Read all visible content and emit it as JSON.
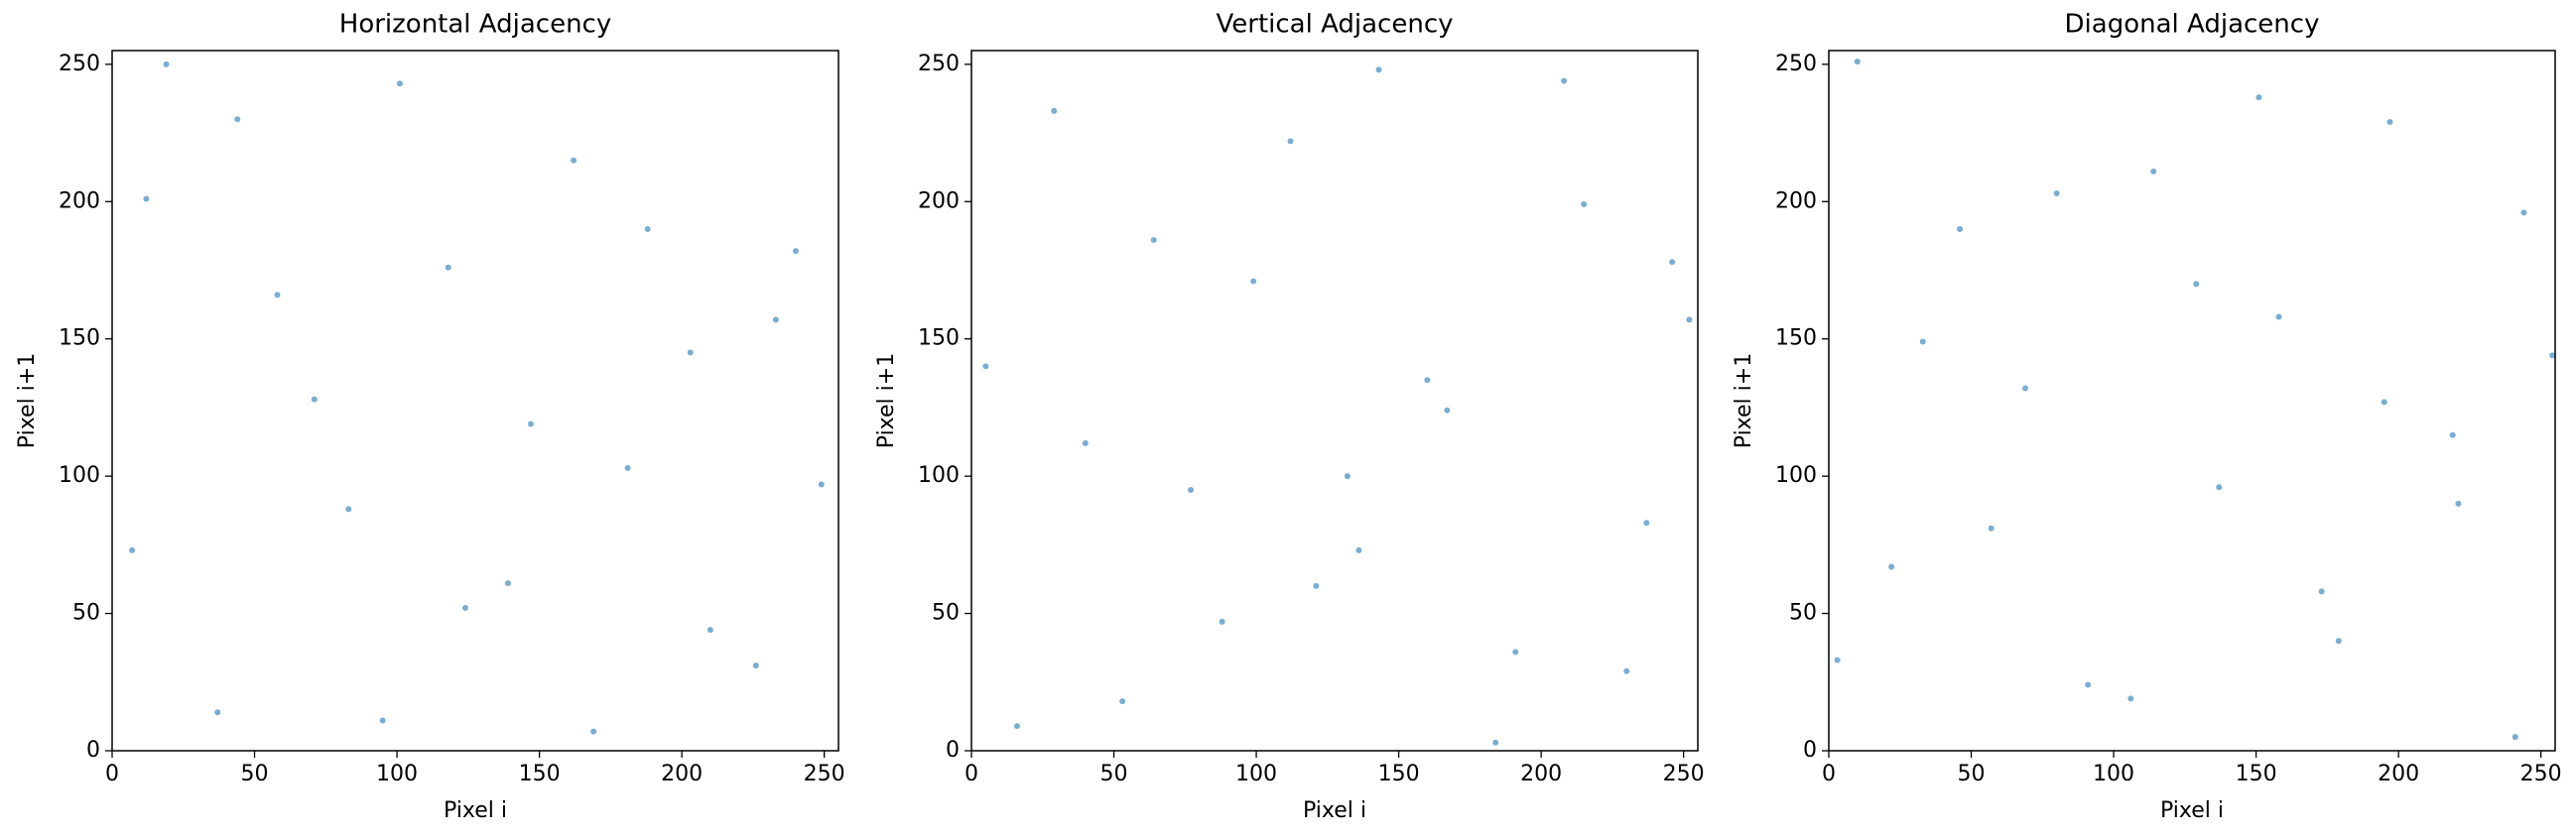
{
  "chart_data": [
    {
      "type": "scatter",
      "title": "Horizontal Adjacency",
      "xlabel": "Pixel i",
      "ylabel": "Pixel i+1",
      "x": [
        12,
        37,
        58,
        83,
        101,
        124,
        147,
        169,
        188,
        203,
        226,
        249,
        7,
        44,
        71,
        95,
        118,
        139,
        162,
        181,
        210,
        233,
        19,
        240
      ],
      "y": [
        201,
        14,
        166,
        88,
        243,
        52,
        119,
        7,
        190,
        145,
        31,
        97,
        73,
        230,
        128,
        11,
        176,
        61,
        215,
        103,
        44,
        157,
        250,
        182
      ],
      "color": "#1f77b4",
      "xlim": [
        0,
        255
      ],
      "ylim": [
        0,
        255
      ],
      "xticks": [
        0,
        50,
        100,
        150,
        200,
        250
      ],
      "yticks": [
        0,
        50,
        100,
        150,
        200,
        250
      ]
    },
    {
      "type": "scatter",
      "title": "Vertical Adjacency",
      "xlabel": "Pixel i",
      "ylabel": "Pixel i+1",
      "x": [
        5,
        29,
        53,
        77,
        99,
        121,
        143,
        167,
        191,
        215,
        237,
        252,
        16,
        40,
        64,
        88,
        112,
        136,
        160,
        184,
        208,
        230,
        246,
        132
      ],
      "y": [
        140,
        233,
        18,
        95,
        171,
        60,
        248,
        124,
        36,
        199,
        83,
        157,
        9,
        112,
        186,
        47,
        222,
        73,
        135,
        3,
        244,
        29,
        178,
        100
      ],
      "color": "#1f77b4",
      "xlim": [
        0,
        255
      ],
      "ylim": [
        0,
        255
      ],
      "xticks": [
        0,
        50,
        100,
        150,
        200,
        250
      ],
      "yticks": [
        0,
        50,
        100,
        150,
        200,
        250
      ]
    },
    {
      "type": "scatter",
      "title": "Diagonal Adjacency",
      "xlabel": "Pixel i",
      "ylabel": "Pixel i+1",
      "x": [
        22,
        46,
        69,
        91,
        114,
        137,
        158,
        179,
        197,
        219,
        241,
        10,
        33,
        57,
        80,
        106,
        129,
        151,
        173,
        195,
        221,
        244,
        3,
        254
      ],
      "y": [
        67,
        190,
        132,
        24,
        211,
        96,
        158,
        40,
        229,
        115,
        5,
        251,
        149,
        81,
        203,
        19,
        170,
        238,
        58,
        127,
        90,
        196,
        33,
        144
      ],
      "color": "#1f77b4",
      "xlim": [
        0,
        255
      ],
      "ylim": [
        0,
        255
      ],
      "xticks": [
        0,
        50,
        100,
        150,
        200,
        250
      ],
      "yticks": [
        0,
        50,
        100,
        150,
        200,
        250
      ]
    }
  ]
}
